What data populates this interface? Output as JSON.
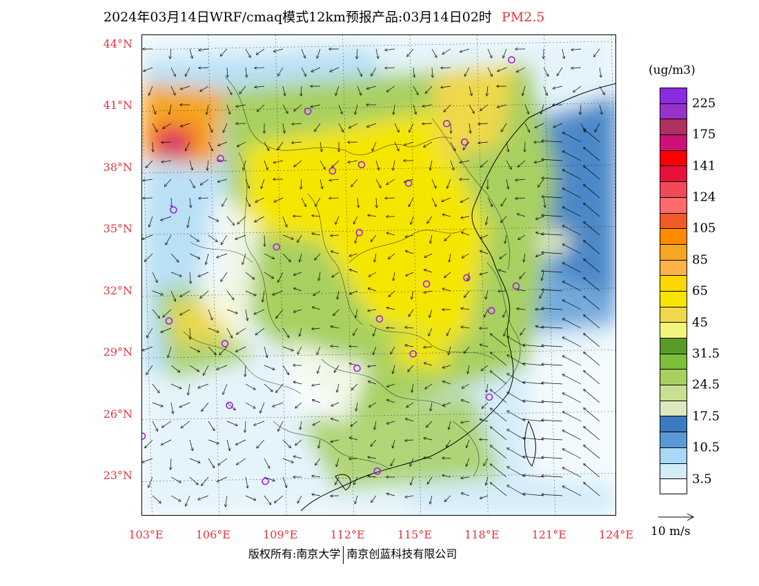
{
  "title": {
    "main": "2024年03月14日WRF/cmaq模式12km预报产品:03月14日02时",
    "pollutant": "PM2.5"
  },
  "axes": {
    "lat_labels": [
      "44°N",
      "41°N",
      "38°N",
      "35°N",
      "32°N",
      "29°N",
      "26°N",
      "23°N"
    ],
    "lon_labels": [
      "103°E",
      "106°E",
      "109°E",
      "112°E",
      "115°E",
      "118°E",
      "121°E",
      "124°E"
    ]
  },
  "legend": {
    "unit": "(ug/m3)",
    "labels": [
      "225",
      "175",
      "141",
      "124",
      "105",
      "85",
      "65",
      "45",
      "31.5",
      "24.5",
      "17.5",
      "10.5",
      "3.5"
    ],
    "colors": [
      "#8a2be2",
      "#9932cc",
      "#b03060",
      "#cc1177",
      "#ff0000",
      "#e8103c",
      "#f04a5a",
      "#ff6a6a",
      "#f05a28",
      "#ff8c00",
      "#f5a623",
      "#ffb347",
      "#ffd700",
      "#f5e600",
      "#f0d84a",
      "#f2f57a",
      "#5a9a2a",
      "#7cbf3a",
      "#a8d060",
      "#c8e090",
      "#dde8c0",
      "#3a7bbf",
      "#5a9ad4",
      "#a8d8f5",
      "#d4ecf8",
      "#ffffff"
    ]
  },
  "wind_reference": {
    "label": "10 m/s"
  },
  "copyright": {
    "left": "版权所有:南京大学",
    "right": "南京创蓝科技有限公司"
  },
  "map": {
    "stations": [
      {
        "lon": 119.3,
        "lat": 43.3
      },
      {
        "lon": 110.2,
        "lat": 40.8
      },
      {
        "lon": 116.4,
        "lat": 40.2
      },
      {
        "lon": 117.2,
        "lat": 39.3
      },
      {
        "lon": 106.3,
        "lat": 38.5
      },
      {
        "lon": 111.3,
        "lat": 37.9
      },
      {
        "lon": 112.6,
        "lat": 38.2
      },
      {
        "lon": 114.7,
        "lat": 37.3
      },
      {
        "lon": 104.2,
        "lat": 36.0
      },
      {
        "lon": 112.5,
        "lat": 34.9
      },
      {
        "lon": 108.8,
        "lat": 34.2
      },
      {
        "lon": 117.3,
        "lat": 32.7
      },
      {
        "lon": 115.5,
        "lat": 32.4
      },
      {
        "lon": 119.5,
        "lat": 32.3
      },
      {
        "lon": 118.4,
        "lat": 31.1
      },
      {
        "lon": 104.0,
        "lat": 30.6
      },
      {
        "lon": 113.4,
        "lat": 30.7
      },
      {
        "lon": 106.5,
        "lat": 29.5
      },
      {
        "lon": 114.9,
        "lat": 29.0
      },
      {
        "lon": 112.4,
        "lat": 28.3
      },
      {
        "lon": 118.3,
        "lat": 26.9
      },
      {
        "lon": 106.7,
        "lat": 26.5
      },
      {
        "lon": 102.8,
        "lat": 25.0
      },
      {
        "lon": 108.3,
        "lat": 22.8
      },
      {
        "lon": 113.3,
        "lat": 23.3
      }
    ]
  }
}
